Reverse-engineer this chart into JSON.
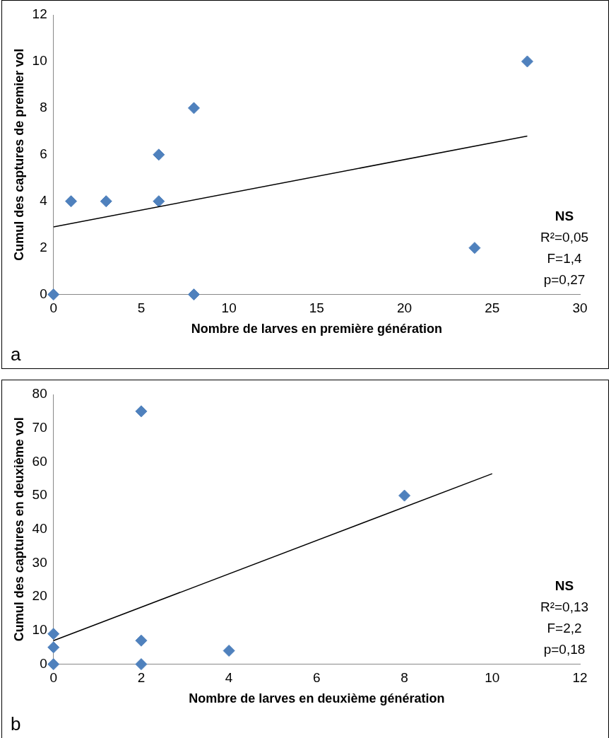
{
  "chart_data": [
    {
      "type": "scatter",
      "xlabel": "Nombre de larves en première génération",
      "ylabel": "Cumul des captures de premier vol",
      "x": [
        0,
        1,
        3,
        6,
        6,
        8,
        8,
        24,
        27
      ],
      "values": [
        0,
        4,
        4,
        6,
        4,
        8,
        0,
        2,
        10
      ],
      "color": "#4f81bd",
      "marker": "diamond",
      "xlim": [
        0,
        30
      ],
      "xticks": [
        0,
        5,
        10,
        15,
        20,
        25,
        30
      ],
      "ylim": [
        0,
        12
      ],
      "yticks": [
        0,
        2,
        4,
        6,
        8,
        10,
        12
      ],
      "grid": false,
      "legend": false,
      "series": [
        {
          "type": "line",
          "x": [
            0,
            27
          ],
          "values": [
            2.9,
            6.8
          ],
          "color": "#000000",
          "marker": "none",
          "line_style": "solid"
        }
      ],
      "annotations": [
        "NS",
        "R²=0,05",
        "F=1,4",
        "p=0,27",
        "a"
      ]
    },
    {
      "type": "scatter",
      "xlabel": "Nombre de larves en deuxième génération",
      "ylabel": "Cumul des captures en deuxième vol",
      "x": [
        0,
        0,
        0,
        2,
        2,
        2,
        4,
        8
      ],
      "values": [
        9,
        5,
        0,
        75,
        7,
        0,
        4,
        50
      ],
      "color": "#4f81bd",
      "marker": "diamond",
      "xlim": [
        0,
        12
      ],
      "xticks": [
        0,
        2,
        4,
        6,
        8,
        10,
        12
      ],
      "ylim": [
        0,
        80
      ],
      "yticks": [
        0,
        10,
        20,
        30,
        40,
        50,
        60,
        70,
        80
      ],
      "grid": false,
      "legend": false,
      "series": [
        {
          "type": "line",
          "x": [
            0,
            10
          ],
          "values": [
            7,
            56.5
          ],
          "color": "#000000",
          "marker": "none",
          "line_style": "solid"
        }
      ],
      "annotations": [
        "NS",
        "R²=0,13",
        "F=2,2",
        "p=0,18",
        "b"
      ]
    }
  ]
}
